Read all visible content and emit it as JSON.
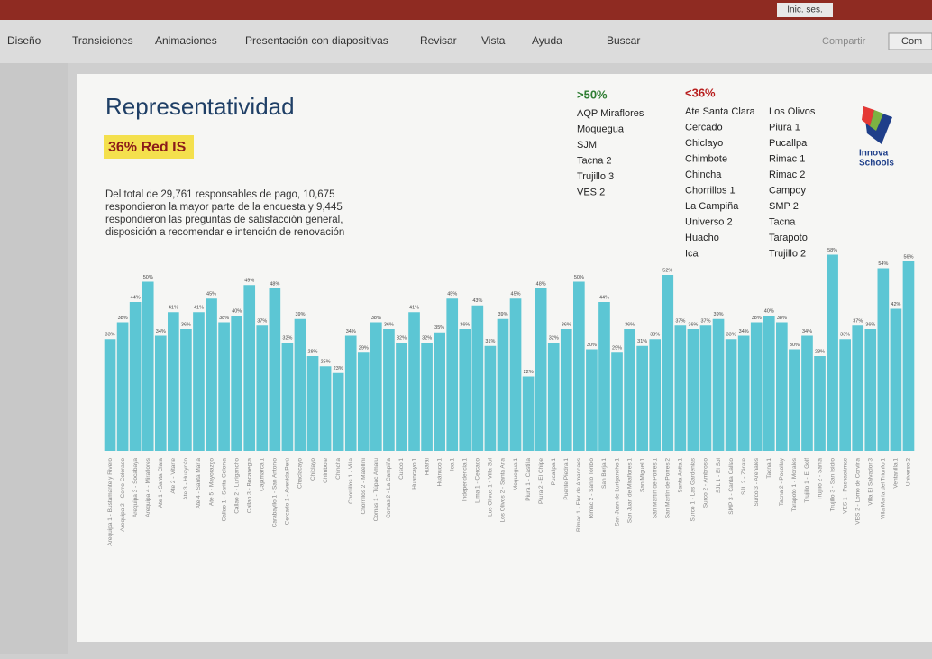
{
  "title_bar": {
    "sign_in": "Inic. ses."
  },
  "ribbon": {
    "tabs": [
      "Diseño",
      "Transiciones",
      "Animaciones",
      "Presentación con diapositivas",
      "Revisar",
      "Vista",
      "Ayuda"
    ],
    "search": "Buscar",
    "share": "Compartir",
    "comments": "Com"
  },
  "slide": {
    "title": "Representatividad",
    "highlight": "36% Red IS",
    "description": [
      "Del total de 29,761 responsables de pago, 10,675",
      "respondieron la mayor parte de la encuesta y 9,445",
      "respondieron las preguntas de satisfacción general,",
      "disposición a recomendar e intención de renovación"
    ],
    "high_group": {
      "heading": ">50%",
      "items": [
        "AQP Miraflores",
        "Moquegua",
        "SJM",
        "Tacna 2",
        "Trujillo 3",
        "VES 2"
      ]
    },
    "low_group": {
      "heading": "<36%",
      "columns": [
        [
          "Ate Santa Clara",
          "Cercado",
          "Chiclayo",
          "Chimbote",
          "Chincha",
          "Chorrillos 1",
          "La Campiña",
          "Universo 2",
          "Huacho",
          "Ica"
        ],
        [
          "Los Olivos",
          "Piura 1",
          "Pucallpa",
          "Rimac 1",
          "Rimac 2",
          "Campoy",
          "SMP 2",
          "Tacna",
          "Tarapoto",
          "Trujillo 2"
        ]
      ]
    },
    "logo": [
      "Innova",
      "Schools"
    ]
  },
  "chart_data": {
    "type": "bar",
    "color": "#5cc6d4",
    "ylim": [
      0,
      60
    ],
    "categories": [
      "Arequipa 1 - Bustamante y Rivero",
      "Arequipa 2 - Cerro Colorado",
      "Arequipa 3 - Socabaya",
      "Arequipa 4 - Miraflores",
      "Ate 1 - Santa Clara",
      "Ate 2 - Vitarte",
      "Ate 3 - Huaycán",
      "Ate 4 - Santa María",
      "Ate 5 - Mayorazgo",
      "Callao 1 - Sarita Colonia",
      "Callao 2 - Lurigancho",
      "Callao 3 - Bocanegra",
      "Cajamarca 1",
      "Carabayllo 1 - San Antonio",
      "Cercado 1 - Avenida Perú",
      "Chaclacayo",
      "Chiclayo",
      "Chimbote",
      "Chincha",
      "Chorrillos 1 - Villa",
      "Chorrillos 2 - Matellini",
      "Comas 1 - Túpac Amaru",
      "Comas 2 - La Campiña",
      "Cusco 1",
      "Huancayo 1",
      "Huaral",
      "Huánuco 1",
      "Ica 1",
      "Independencia 1",
      "Lima 1 - Cercado",
      "Los Olivos 1 - Villa Sol",
      "Los Olivos 2 - Santa Ana",
      "Moquegua 1",
      "Piura 1 - Castilla",
      "Piura 2 - El Chipe",
      "Pucallpa 1",
      "Puente Piedra 1",
      "Rimac 1 - Flor de Amancaes",
      "Rimac 2 - Santo Toribio",
      "San Borja 1",
      "San Juan de Lurigancho 1",
      "San Juan de Miraflores 1",
      "San Miguel 1",
      "San Martín de Porres 1",
      "San Martín de Porres 2",
      "Santa Anita 1",
      "Surco 1 - Las Gardenias",
      "Surco 2 - Ambrosio",
      "SJL 1 - El Sol",
      "SMP 3 - Canta Callao",
      "SJL 2 - Zárate",
      "Surco 3 - Arenales",
      "Tacna 1",
      "Tacna 2 - Pocollay",
      "Tarapoto 1 - Morales",
      "Trujillo 1 - El Golf",
      "Trujillo 2 - Santa",
      "Trujillo 3 - San Isidro",
      "VES 1 - Pachacámac",
      "VES 2 - Lomo de Corvina",
      "Villa El Salvador 3",
      "Villa María del Triunfo 1",
      "Ventanilla 1",
      "Universo 2"
    ],
    "values": [
      33,
      38,
      44,
      50,
      34,
      41,
      36,
      41,
      45,
      38,
      40,
      49,
      37,
      48,
      32,
      39,
      28,
      25,
      23,
      34,
      29,
      38,
      36,
      32,
      41,
      32,
      35,
      45,
      36,
      43,
      31,
      39,
      45,
      22,
      48,
      32,
      36,
      50,
      30,
      44,
      29,
      36,
      31,
      33,
      52,
      37,
      36,
      37,
      39,
      33,
      34,
      38,
      40,
      38,
      30,
      34,
      28,
      58,
      33,
      37,
      36,
      54,
      42,
      56
    ],
    "value_labels": [
      "33%",
      "38%",
      "44%",
      "50%",
      "34%",
      "41%",
      "36%",
      "41%",
      "45%",
      "38%",
      "40%",
      "49%",
      "37%",
      "48%",
      "32%",
      "39%",
      "28%",
      "25%",
      "23%",
      "34%",
      "29%",
      "38%",
      "36%",
      "32%",
      "41%",
      "32%",
      "35%",
      "45%",
      "36%",
      "43%",
      "31%",
      "39%",
      "45%",
      "22%",
      "48%",
      "32%",
      "36%",
      "50%",
      "30%",
      "44%",
      "29%",
      "36%",
      "31%",
      "33%",
      "52%",
      "37%",
      "36%",
      "37%",
      "39%",
      "33%",
      "34%",
      "38%",
      "40%",
      "38%",
      "30%",
      "34%",
      "28%",
      "58%",
      "33%",
      "37%",
      "36%",
      "54%",
      "42%",
      "56%"
    ]
  }
}
